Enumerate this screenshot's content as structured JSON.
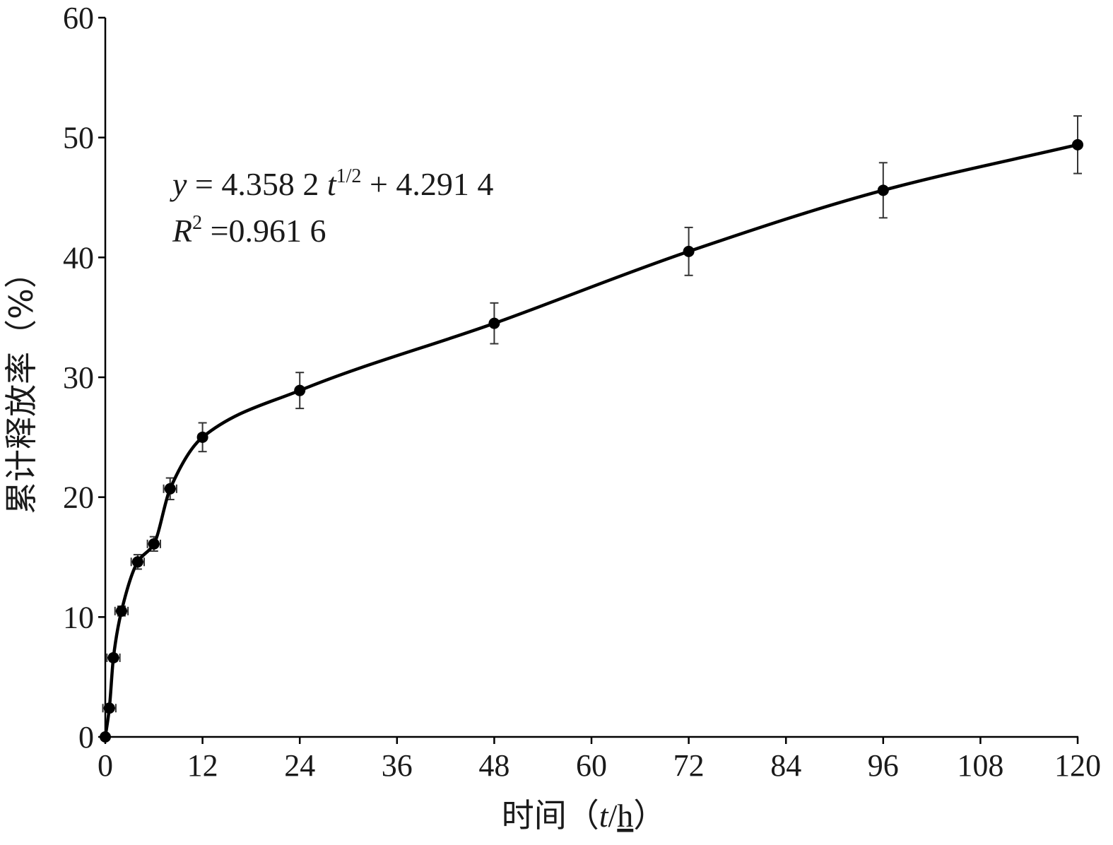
{
  "chart_data": {
    "type": "line",
    "xlabel": "时间（t/h）",
    "xlabel_parts": {
      "prefix": "时间（",
      "var": "t",
      "sep": "/",
      "unit": "h",
      "suffix": "）"
    },
    "ylabel": "累计释放率（%）",
    "xlim": [
      0,
      120
    ],
    "ylim": [
      0,
      60
    ],
    "xticks": [
      0,
      12,
      24,
      36,
      48,
      60,
      72,
      84,
      96,
      108,
      120
    ],
    "yticks": [
      0,
      10,
      20,
      30,
      40,
      50,
      60
    ],
    "grid": false,
    "x": [
      0,
      0.5,
      1,
      2,
      4,
      6,
      8,
      12,
      24,
      48,
      72,
      96,
      120
    ],
    "y": [
      0,
      2.4,
      6.6,
      10.5,
      14.6,
      16.1,
      20.7,
      25.0,
      28.9,
      34.5,
      40.5,
      45.6,
      49.4
    ],
    "y_err": [
      0,
      0.2,
      0.3,
      0.4,
      0.6,
      0.6,
      0.9,
      1.2,
      1.5,
      1.7,
      2.0,
      2.3,
      2.4
    ],
    "x_err": [
      0,
      0.8,
      0.8,
      0.8,
      0.8,
      0.8,
      0.8,
      0.3,
      0.3,
      0.3,
      0.3,
      0.3,
      0.3
    ],
    "series_color": "#000000",
    "annotation": {
      "line1": {
        "y": "y",
        "eq": " = 4.358 2 ",
        "t": "t",
        "exp": "1/2",
        "rest": " + 4.291 4"
      },
      "line2": {
        "R": "R",
        "exp": "2",
        "rest": " =0.961 6"
      }
    }
  }
}
